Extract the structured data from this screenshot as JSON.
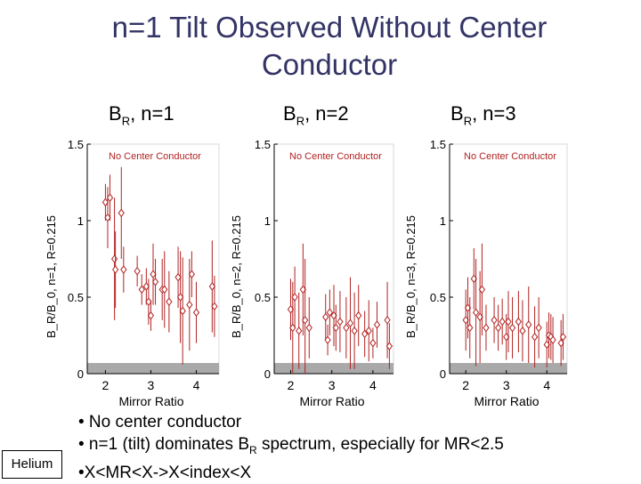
{
  "title_line1": "n=1 Tilt Observed Without Center",
  "title_line2": "Conductor",
  "columns": [
    {
      "label": "B",
      "sub": "R",
      "rest": ", n=1"
    },
    {
      "label": "B",
      "sub": "R",
      "rest": ", n=2"
    },
    {
      "label": "B",
      "sub": "R",
      "rest": ", n=3"
    }
  ],
  "bullets": [
    {
      "text": "• No center conductor"
    },
    {
      "pre": "• n=1 (tilt) dominates B",
      "sub": "R",
      "post": " spectrum, especially for MR<2.5"
    },
    {
      "text": "•X<MR<X->X<index<X"
    }
  ],
  "badge": "Helium",
  "colors": {
    "marker": "#b22222",
    "band": "#a9a9a9",
    "title": "#333366"
  },
  "chart_data": [
    {
      "type": "scatter",
      "annotation": "No Center Conductor",
      "ylabel": "B_R/B_0, n=1, R=0.215",
      "xlabel": "Mirror Ratio",
      "xlim": [
        1.6,
        4.5
      ],
      "ylim": [
        0,
        1.5
      ],
      "xticks": [
        2,
        3,
        4
      ],
      "yticks": [
        0,
        0.5,
        1,
        1.5
      ],
      "yticklabels": [
        "0",
        "0.5",
        "1",
        "1.5"
      ],
      "shaded_band": [
        0,
        0.07
      ],
      "points": [
        {
          "x": 2.0,
          "y": 1.12,
          "err": 0.12
        },
        {
          "x": 2.05,
          "y": 1.02,
          "err": 0.2
        },
        {
          "x": 2.1,
          "y": 1.15,
          "err": 0.15
        },
        {
          "x": 2.2,
          "y": 0.75,
          "err": 0.4
        },
        {
          "x": 2.22,
          "y": 0.68,
          "err": 0.25
        },
        {
          "x": 2.35,
          "y": 1.05,
          "err": 0.3
        },
        {
          "x": 2.4,
          "y": 0.68,
          "err": 0.15
        },
        {
          "x": 2.7,
          "y": 0.67,
          "err": 0.1
        },
        {
          "x": 2.8,
          "y": 0.55,
          "err": 0.1
        },
        {
          "x": 2.9,
          "y": 0.57,
          "err": 0.12
        },
        {
          "x": 2.95,
          "y": 0.47,
          "err": 0.15
        },
        {
          "x": 3.0,
          "y": 0.38,
          "err": 0.1
        },
        {
          "x": 3.05,
          "y": 0.65,
          "err": 0.2
        },
        {
          "x": 3.1,
          "y": 0.6,
          "err": 0.15
        },
        {
          "x": 3.25,
          "y": 0.55,
          "err": 0.2
        },
        {
          "x": 3.3,
          "y": 0.55,
          "err": 0.25
        },
        {
          "x": 3.4,
          "y": 0.47,
          "err": 0.2
        },
        {
          "x": 3.6,
          "y": 0.63,
          "err": 0.2
        },
        {
          "x": 3.65,
          "y": 0.5,
          "err": 0.3
        },
        {
          "x": 3.7,
          "y": 0.41,
          "err": 0.35
        },
        {
          "x": 3.85,
          "y": 0.45,
          "err": 0.3
        },
        {
          "x": 3.9,
          "y": 0.65,
          "err": 0.15
        },
        {
          "x": 4.0,
          "y": 0.4,
          "err": 0.2
        },
        {
          "x": 4.35,
          "y": 0.57,
          "err": 0.3
        },
        {
          "x": 4.4,
          "y": 0.44,
          "err": 0.2
        }
      ]
    },
    {
      "type": "scatter",
      "annotation": "No Center Conductor",
      "ylabel": "B_R/B_0, n=2, R=0.215",
      "xlabel": "Mirror Ratio",
      "xlim": [
        1.6,
        4.5
      ],
      "ylim": [
        0,
        1.5
      ],
      "xticks": [
        2,
        3,
        4
      ],
      "yticks": [
        0,
        0.5,
        1,
        1.5
      ],
      "yticklabels": [
        "0",
        "0.5",
        "1",
        "1.5"
      ],
      "shaded_band": [
        0,
        0.07
      ],
      "points": [
        {
          "x": 2.0,
          "y": 0.42,
          "err": 0.2
        },
        {
          "x": 2.05,
          "y": 0.3,
          "err": 0.3
        },
        {
          "x": 2.1,
          "y": 0.5,
          "err": 0.2
        },
        {
          "x": 2.2,
          "y": 0.28,
          "err": 0.25
        },
        {
          "x": 2.3,
          "y": 0.55,
          "err": 0.3
        },
        {
          "x": 2.35,
          "y": 0.35,
          "err": 0.4
        },
        {
          "x": 2.45,
          "y": 0.3,
          "err": 0.2
        },
        {
          "x": 2.85,
          "y": 0.37,
          "err": 0.15
        },
        {
          "x": 2.9,
          "y": 0.22,
          "err": 0.1
        },
        {
          "x": 2.95,
          "y": 0.4,
          "err": 0.15
        },
        {
          "x": 3.05,
          "y": 0.38,
          "err": 0.2
        },
        {
          "x": 3.1,
          "y": 0.3,
          "err": 0.15
        },
        {
          "x": 3.2,
          "y": 0.34,
          "err": 0.2
        },
        {
          "x": 3.35,
          "y": 0.3,
          "err": 0.2
        },
        {
          "x": 3.45,
          "y": 0.33,
          "err": 0.3
        },
        {
          "x": 3.55,
          "y": 0.28,
          "err": 0.25
        },
        {
          "x": 3.65,
          "y": 0.38,
          "err": 0.2
        },
        {
          "x": 3.8,
          "y": 0.26,
          "err": 0.15
        },
        {
          "x": 3.9,
          "y": 0.28,
          "err": 0.2
        },
        {
          "x": 4.0,
          "y": 0.2,
          "err": 0.1
        },
        {
          "x": 4.1,
          "y": 0.32,
          "err": 0.15
        },
        {
          "x": 4.35,
          "y": 0.35,
          "err": 0.25
        },
        {
          "x": 4.4,
          "y": 0.18,
          "err": 0.15
        }
      ]
    },
    {
      "type": "scatter",
      "annotation": "No Center Conductor",
      "ylabel": "B_R/B_0, n=3, R=0.215",
      "xlabel": "Mirror Ratio",
      "xlim": [
        1.6,
        4.5
      ],
      "ylim": [
        0,
        1.5
      ],
      "xticks": [
        2,
        3,
        4
      ],
      "yticks": [
        0,
        0.5,
        1,
        1.5
      ],
      "yticklabels": [
        "0",
        "0.5",
        "1",
        "1.5"
      ],
      "shaded_band": [
        0,
        0.07
      ],
      "points": [
        {
          "x": 2.0,
          "y": 0.35,
          "err": 0.2
        },
        {
          "x": 2.05,
          "y": 0.43,
          "err": 0.2
        },
        {
          "x": 2.1,
          "y": 0.3,
          "err": 0.2
        },
        {
          "x": 2.2,
          "y": 0.62,
          "err": 0.2
        },
        {
          "x": 2.25,
          "y": 0.4,
          "err": 0.35
        },
        {
          "x": 2.35,
          "y": 0.37,
          "err": 0.3
        },
        {
          "x": 2.4,
          "y": 0.55,
          "err": 0.3
        },
        {
          "x": 2.5,
          "y": 0.3,
          "err": 0.15
        },
        {
          "x": 2.7,
          "y": 0.35,
          "err": 0.15
        },
        {
          "x": 2.8,
          "y": 0.3,
          "err": 0.15
        },
        {
          "x": 2.9,
          "y": 0.34,
          "err": 0.15
        },
        {
          "x": 3.0,
          "y": 0.24,
          "err": 0.15
        },
        {
          "x": 3.05,
          "y": 0.34,
          "err": 0.2
        },
        {
          "x": 3.15,
          "y": 0.3,
          "err": 0.2
        },
        {
          "x": 3.3,
          "y": 0.34,
          "err": 0.2
        },
        {
          "x": 3.4,
          "y": 0.28,
          "err": 0.2
        },
        {
          "x": 3.55,
          "y": 0.32,
          "err": 0.25
        },
        {
          "x": 3.7,
          "y": 0.24,
          "err": 0.2
        },
        {
          "x": 3.8,
          "y": 0.3,
          "err": 0.2
        },
        {
          "x": 4.0,
          "y": 0.19,
          "err": 0.15
        },
        {
          "x": 4.05,
          "y": 0.25,
          "err": 0.15
        },
        {
          "x": 4.1,
          "y": 0.24,
          "err": 0.15
        },
        {
          "x": 4.15,
          "y": 0.22,
          "err": 0.15
        },
        {
          "x": 4.35,
          "y": 0.2,
          "err": 0.15
        },
        {
          "x": 4.4,
          "y": 0.24,
          "err": 0.15
        }
      ]
    }
  ]
}
